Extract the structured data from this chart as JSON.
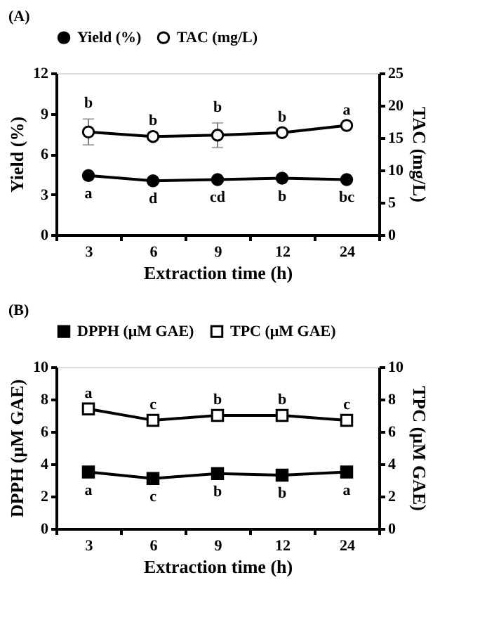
{
  "chart_data": [
    {
      "type": "line",
      "title": "(A)",
      "xlabel": "Extraction time (h)",
      "ylabel": "Yield (%)",
      "y2label": "TAC (mg/L)",
      "categories": [
        "3",
        "6",
        "9",
        "12",
        "24"
      ],
      "series": [
        {
          "name": "Yield (%)",
          "color": "#000000",
          "marker": "circle",
          "values": [
            4.4,
            4.0,
            4.1,
            4.2,
            4.1
          ]
        },
        {
          "name": "TAC (mg/L)",
          "color": "#000000",
          "marker": "circle",
          "axis": "y2",
          "values": [
            15.9,
            15.2,
            15.4,
            15.8,
            16.9
          ],
          "errors": [
            2.0,
            null,
            1.9,
            null,
            null
          ]
        }
      ],
      "ylim": [
        0,
        12
      ],
      "yticks": [
        0,
        3,
        6,
        9,
        12
      ],
      "y2lim": [
        0,
        25
      ],
      "y2ticks": [
        0,
        5,
        10,
        15,
        20,
        25
      ],
      "grid": false,
      "legend": "top",
      "line_style": "solid",
      "annotations": [
        "b",
        "b",
        "b",
        "b",
        "a",
        {
          "text": "a",
          "x": "3",
          "y": 4.4
        },
        {
          "text": "d",
          "x": "6",
          "y": 4.0
        },
        {
          "text": "cd",
          "x": "9",
          "y": 4.1
        },
        {
          "text": "b",
          "x": "12",
          "y": 4.2
        },
        {
          "text": "bc",
          "x": "24",
          "y": 4.1
        }
      ]
    },
    {
      "type": "line",
      "title": "(B)",
      "xlabel": "Extraction time (h)",
      "ylabel": "DPPH (μM GAE)",
      "y2label": "TPC (μM GAE)",
      "categories": [
        "3",
        "6",
        "9",
        "12",
        "24"
      ],
      "series": [
        {
          "name": "DPPH (μM GAE)",
          "color": "#000000",
          "marker": "square",
          "values": [
            3.5,
            3.1,
            3.4,
            3.3,
            3.5
          ]
        },
        {
          "name": "TPC (μM GAE)",
          "color": "#000000",
          "marker": "square",
          "axis": "y2",
          "values": [
            7.4,
            6.7,
            7.0,
            7.0,
            6.7
          ]
        }
      ],
      "ylim": [
        0,
        10
      ],
      "yticks": [
        0,
        2,
        4,
        6,
        8,
        10
      ],
      "y2lim": [
        0,
        10
      ],
      "y2ticks": [
        0,
        2,
        4,
        6,
        8,
        10
      ],
      "grid": false,
      "legend": "top",
      "line_style": "solid",
      "annotations": [
        {
          "text": "a",
          "x": "3",
          "y": 7.4
        },
        {
          "text": "c",
          "x": "6",
          "y": 6.7
        },
        {
          "text": "b",
          "x": "9",
          "y": 7.0
        },
        {
          "text": "b",
          "x": "12",
          "y": 7.0
        },
        {
          "text": "c",
          "x": "24",
          "y": 6.7
        },
        {
          "text": "a",
          "x": "3",
          "y": 3.5
        },
        {
          "text": "c",
          "x": "6",
          "y": 3.1
        },
        {
          "text": "b",
          "x": "9",
          "y": 3.4
        },
        {
          "text": "b",
          "x": "12",
          "y": 3.3
        },
        {
          "text": "a",
          "x": "24",
          "y": 3.5
        }
      ]
    }
  ]
}
